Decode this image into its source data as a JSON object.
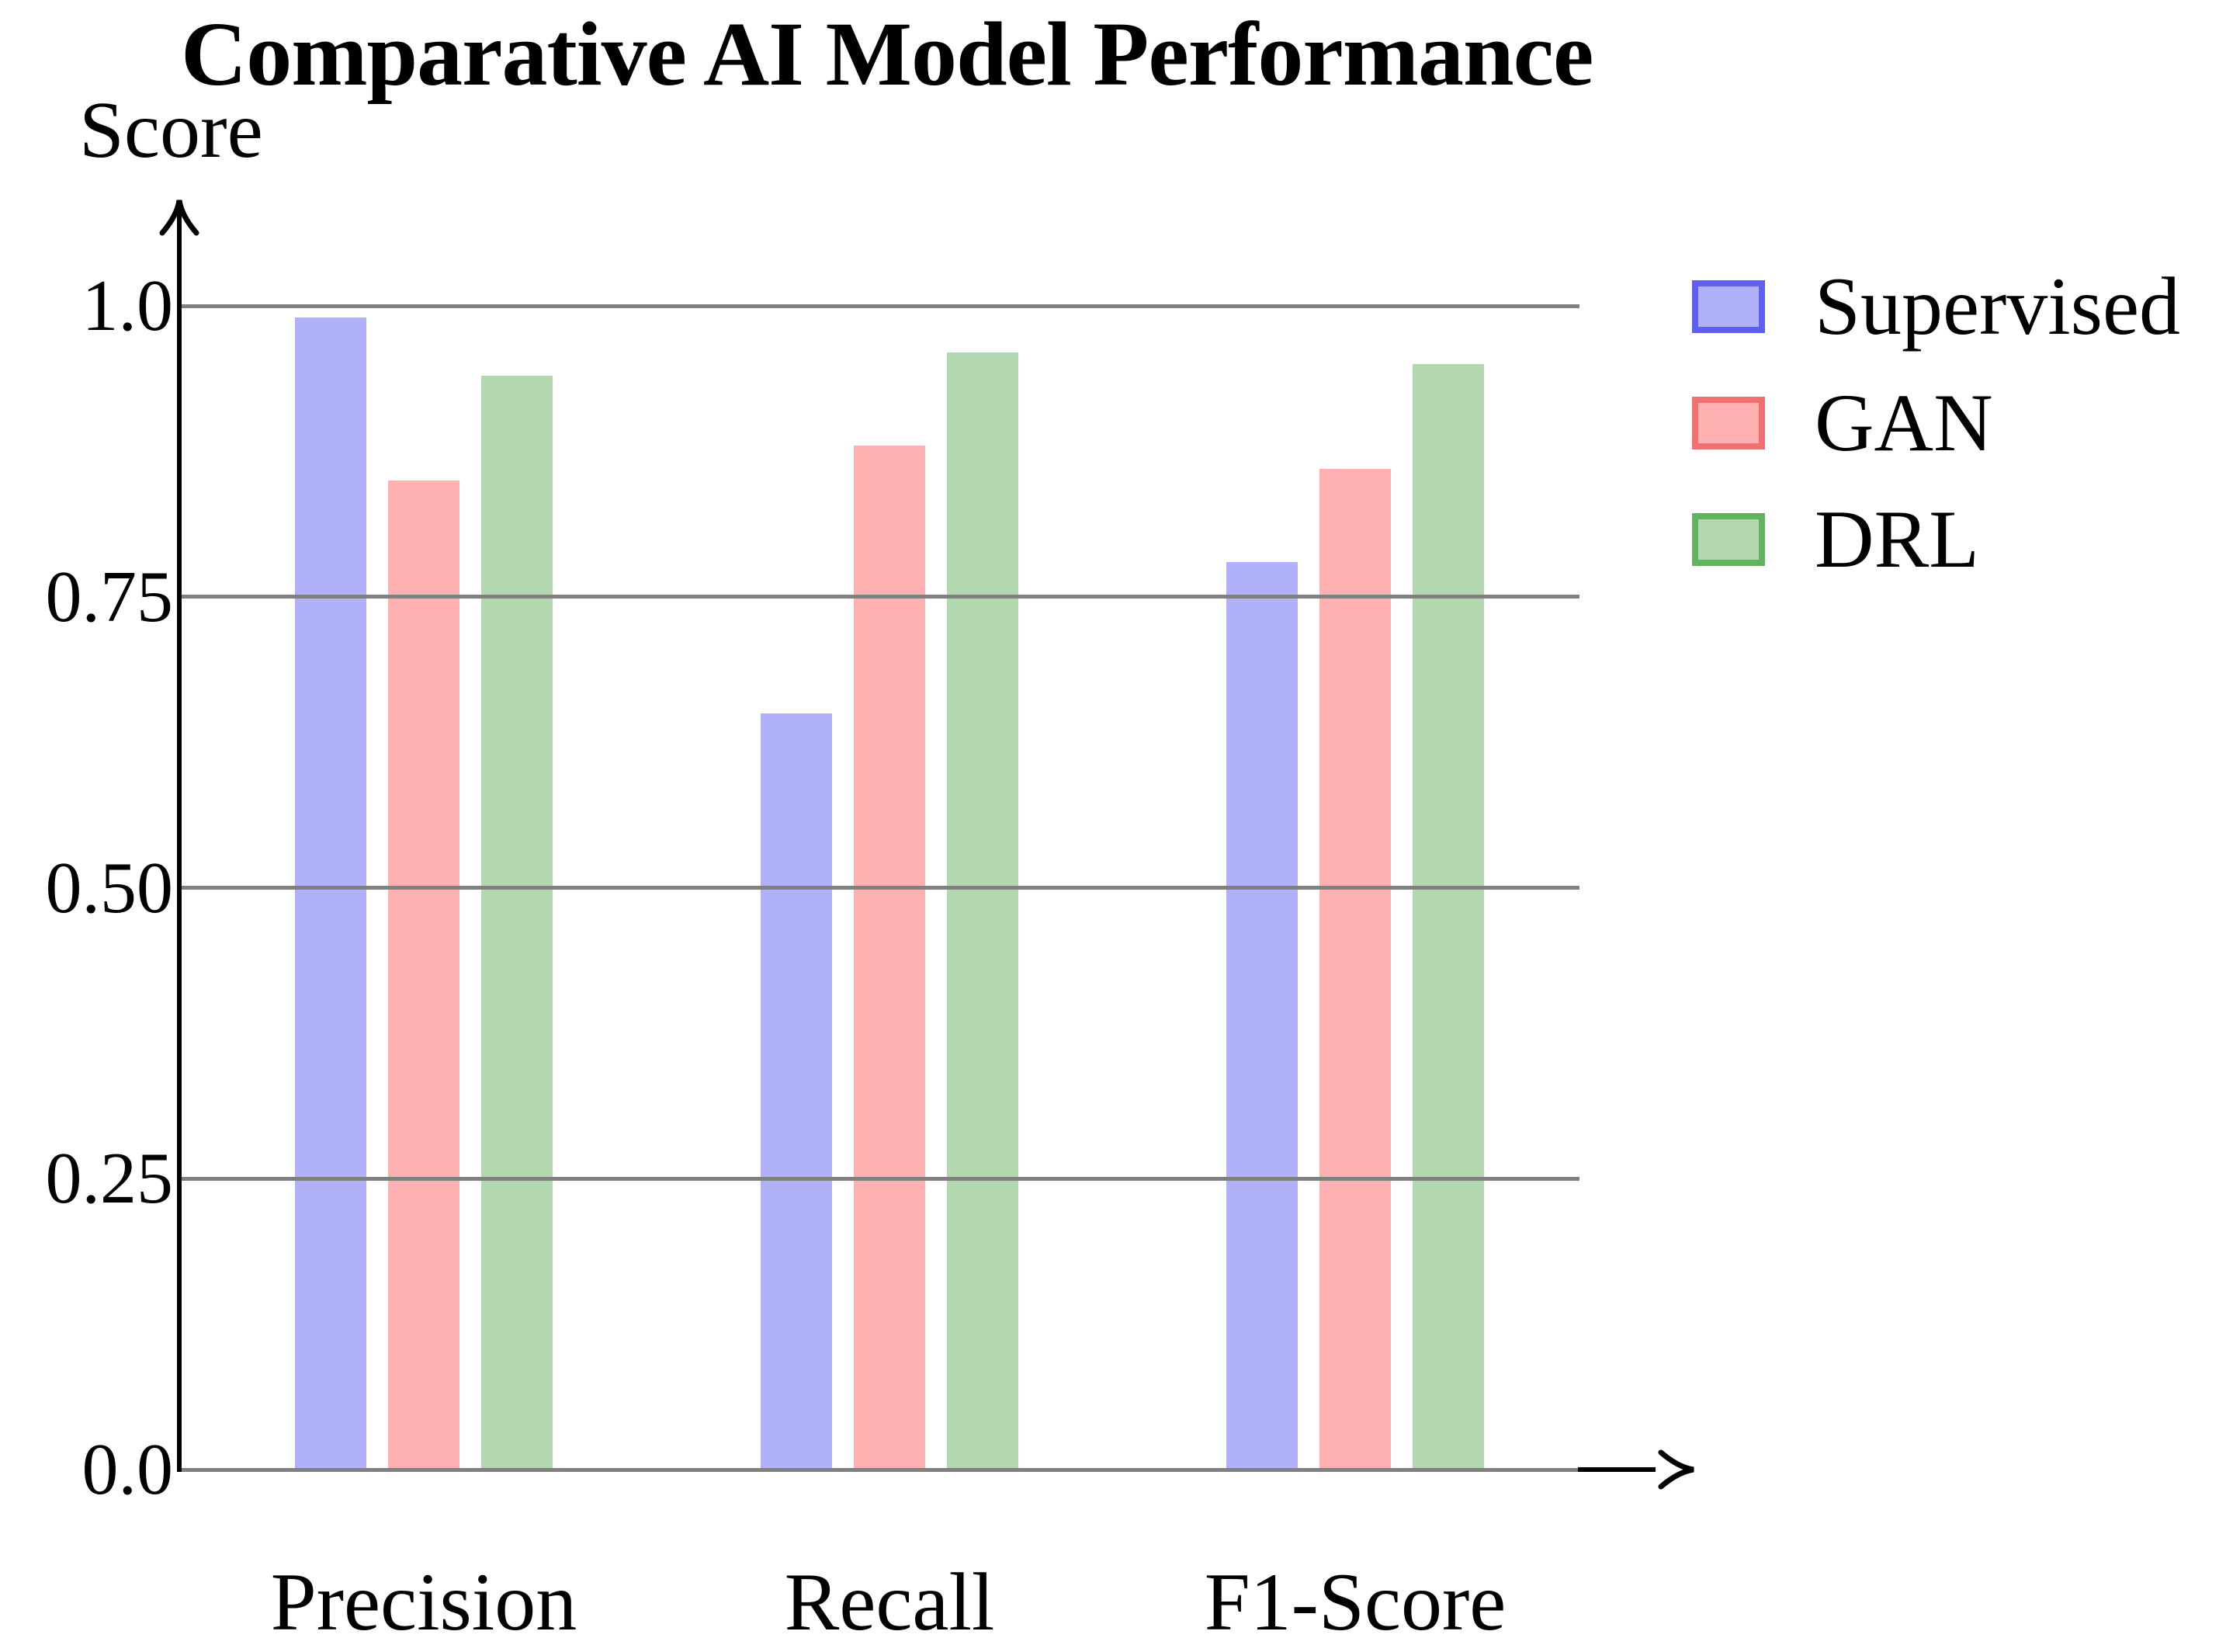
{
  "title": "Comparative AI Model Performance",
  "y_axis": {
    "label": "Score",
    "ticks": [
      {
        "label": "1.0",
        "value": 1.0
      },
      {
        "label": "0.75",
        "value": 0.75
      },
      {
        "label": "0.50",
        "value": 0.5
      },
      {
        "label": "0.25",
        "value": 0.25
      },
      {
        "label": "0.0",
        "value": 0.0
      }
    ]
  },
  "x_axis": {
    "categories": [
      "Precision",
      "Recall",
      "F1-Score"
    ]
  },
  "legend": {
    "position": "right",
    "items": [
      "Supervised",
      "GAN",
      "DRL"
    ]
  },
  "colors": {
    "gridline": "#808080",
    "axis": "#000000",
    "supervised_fill": "#b1b1fa",
    "supervised_border": "#5f5ff2",
    "gan_fill": "#ffb1b1",
    "gan_border": "#f07070",
    "drl_fill": "#b3d7ae",
    "drl_border": "#62b35e"
  },
  "chart_data": {
    "type": "bar",
    "title": "Comparative AI Model Performance",
    "ylabel": "Score",
    "xlabel": "",
    "ylim": [
      0,
      1.0
    ],
    "yticks": [
      0,
      0.25,
      0.5,
      0.75,
      1.0
    ],
    "grid": true,
    "legend_position": "right",
    "categories": [
      "Precision",
      "Recall",
      "F1-Score"
    ],
    "series": [
      {
        "name": "Supervised",
        "values": [
          0.99,
          0.65,
          0.78
        ],
        "fill": "#b1b1fa",
        "border": "#5f5ff2"
      },
      {
        "name": "GAN",
        "values": [
          0.85,
          0.88,
          0.86
        ],
        "fill": "#ffb1b1",
        "border": "#f07070"
      },
      {
        "name": "DRL",
        "values": [
          0.94,
          0.96,
          0.95
        ],
        "fill": "#b3d7ae",
        "border": "#62b35e"
      }
    ]
  }
}
